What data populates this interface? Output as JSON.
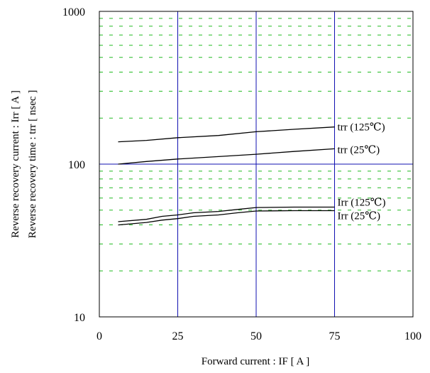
{
  "chart_data": {
    "type": "line",
    "title": "",
    "xlabel": "Forward current  :  IF  [ A ]",
    "ylabel_line1": "Reverse recovery current  :  Irr  [ A ]",
    "ylabel_line2": "Reverse recovery time  :  trr  [ nsec ]",
    "xlim": [
      0,
      100
    ],
    "ylim": [
      10,
      1000
    ],
    "y_scale": "log",
    "x_ticks": [
      0,
      25,
      50,
      75,
      100
    ],
    "y_ticks": [
      10,
      100,
      1000
    ],
    "x_tick_labels": [
      "0",
      "25",
      "50",
      "75",
      "100"
    ],
    "y_tick_labels": [
      "10",
      "100",
      "1000"
    ],
    "grid": {
      "major": true,
      "minor_y": true,
      "major_color": "#1010b0",
      "minor_color": "#22bb22"
    },
    "series": [
      {
        "name": "trr (125℃)",
        "x": [
          6,
          15,
          25,
          38,
          50,
          62,
          75
        ],
        "y": [
          140,
          143,
          149,
          154,
          163,
          169,
          175
        ]
      },
      {
        "name": "trr (25℃)",
        "x": [
          6,
          15,
          25,
          38,
          50,
          62,
          75
        ],
        "y": [
          100,
          104,
          108,
          112,
          116,
          121,
          126
        ]
      },
      {
        "name": "Irr (125℃)",
        "x": [
          6,
          15,
          20,
          25,
          30,
          38,
          44,
          50,
          62,
          75
        ],
        "y": [
          42,
          43.5,
          45.5,
          46.5,
          48,
          49,
          50.5,
          52,
          52.3,
          52.3
        ]
      },
      {
        "name": "Irr (25℃)",
        "x": [
          6,
          15,
          20,
          25,
          30,
          38,
          44,
          50,
          62,
          75
        ],
        "y": [
          40,
          41.5,
          43,
          44,
          45.5,
          46.5,
          48,
          49.3,
          49.6,
          49.6
        ]
      }
    ]
  }
}
